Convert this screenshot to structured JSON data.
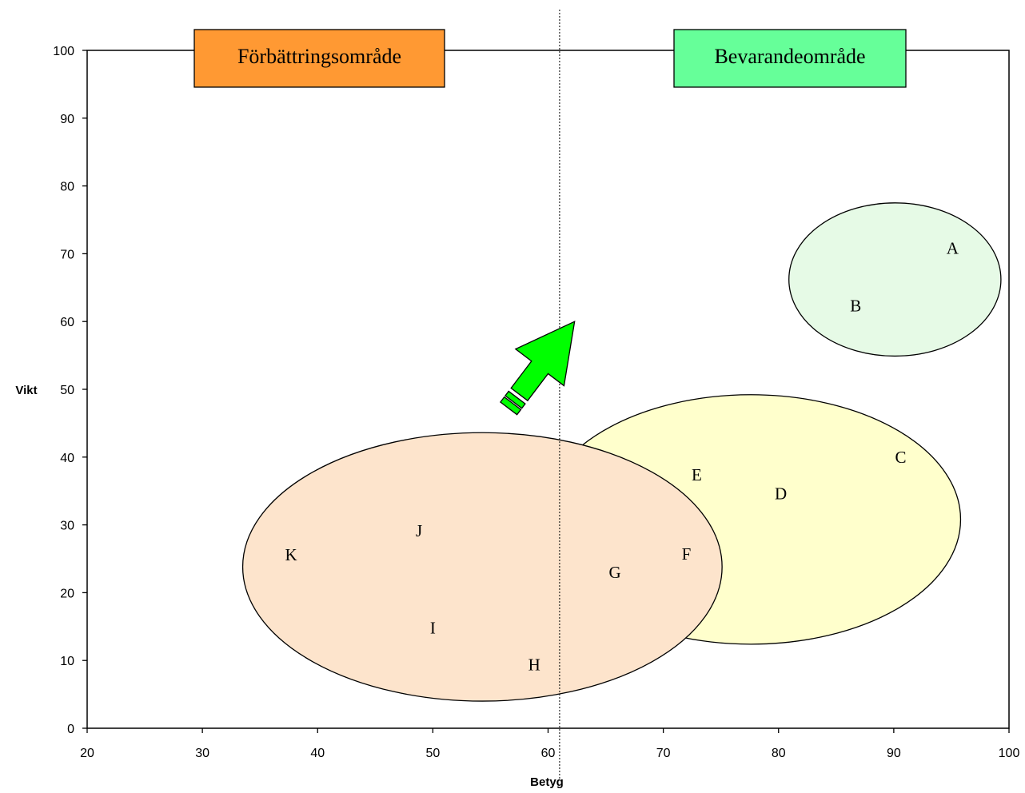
{
  "chart_data": {
    "type": "scatter",
    "title": "",
    "xlabel": "Betyg",
    "ylabel": "Vikt",
    "xlim": [
      20,
      100
    ],
    "ylim": [
      0,
      100
    ],
    "xticks": [
      20,
      30,
      40,
      50,
      60,
      70,
      80,
      90,
      100
    ],
    "yticks": [
      0,
      10,
      20,
      30,
      40,
      50,
      60,
      70,
      80,
      90,
      100
    ],
    "grid": false,
    "threshold_x": 61,
    "zones": [
      {
        "label": "Förbättringsområde",
        "color": "#ff9933"
      },
      {
        "label": "Bevarandeområde",
        "color": "#66ff99"
      }
    ],
    "groups": [
      {
        "color": "#ffffcc",
        "cx": 77.6,
        "cy": 30.8,
        "rx": 18.2,
        "ry": 18.4
      },
      {
        "color": "#e6fae6",
        "cx": 90.1,
        "cy": 66.2,
        "rx": 9.2,
        "ry": 11.3
      },
      {
        "color": "#fde4cc",
        "cx": 54.3,
        "cy": 23.8,
        "rx": 20.8,
        "ry": 19.8
      }
    ],
    "points": [
      {
        "label": "A",
        "x": 95.1,
        "y": 70.8
      },
      {
        "label": "B",
        "x": 86.7,
        "y": 62.3
      },
      {
        "label": "C",
        "x": 90.6,
        "y": 40.0
      },
      {
        "label": "D",
        "x": 80.2,
        "y": 34.6
      },
      {
        "label": "E",
        "x": 72.9,
        "y": 37.4
      },
      {
        "label": "F",
        "x": 72.0,
        "y": 25.7
      },
      {
        "label": "G",
        "x": 65.8,
        "y": 23.0
      },
      {
        "label": "H",
        "x": 58.8,
        "y": 9.4
      },
      {
        "label": "I",
        "x": 50.0,
        "y": 14.8
      },
      {
        "label": "J",
        "x": 48.8,
        "y": 29.1
      },
      {
        "label": "K",
        "x": 37.7,
        "y": 25.6
      }
    ],
    "arrow": {
      "from": [
        56.5,
        47.0
      ],
      "to": [
        62.3,
        60.0
      ],
      "color": "#00ff00"
    }
  }
}
